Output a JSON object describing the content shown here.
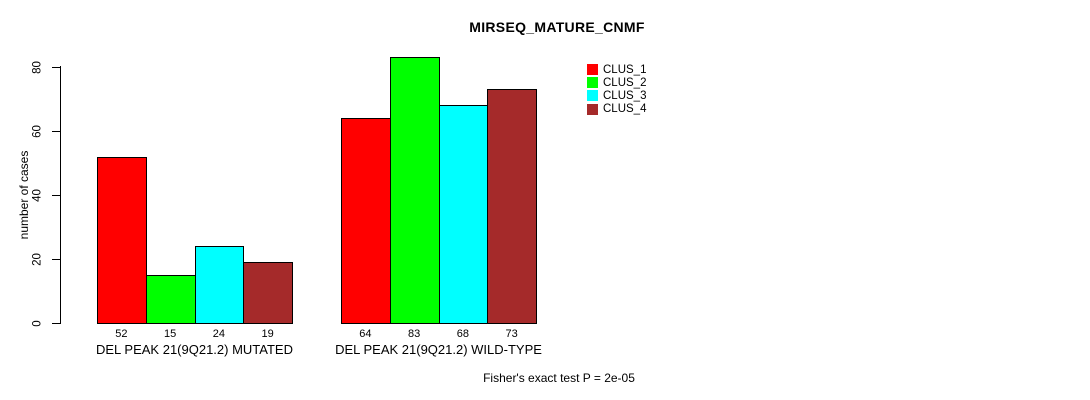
{
  "chart": {
    "title": "MIRSEQ_MATURE_CNMF",
    "y_axis_label": "number of cases",
    "footnote": "Fisher's exact test P = 2e-05"
  },
  "chart_data": {
    "type": "bar",
    "title": "MIRSEQ_MATURE_CNMF",
    "xlabel": "",
    "ylabel": "number of cases",
    "categories": [
      "DEL PEAK 21(9Q21.2) MUTATED",
      "DEL PEAK 21(9Q21.2) WILD-TYPE"
    ],
    "series": [
      {
        "name": "CLUS_1",
        "color": "#ff0000",
        "values": [
          52,
          64
        ]
      },
      {
        "name": "CLUS_2",
        "color": "#00ff00",
        "values": [
          15,
          83
        ]
      },
      {
        "name": "CLUS_3",
        "color": "#00ffff",
        "values": [
          24,
          68
        ]
      },
      {
        "name": "CLUS_4",
        "color": "#a52a2a",
        "values": [
          19,
          73
        ]
      }
    ],
    "yticks": [
      0,
      20,
      40,
      60,
      80
    ],
    "ylim": [
      0,
      83
    ],
    "grid": false,
    "legend_position": "top-right",
    "value_labels_shown": true,
    "annotation": "Fisher's exact test P = 2e-05"
  }
}
